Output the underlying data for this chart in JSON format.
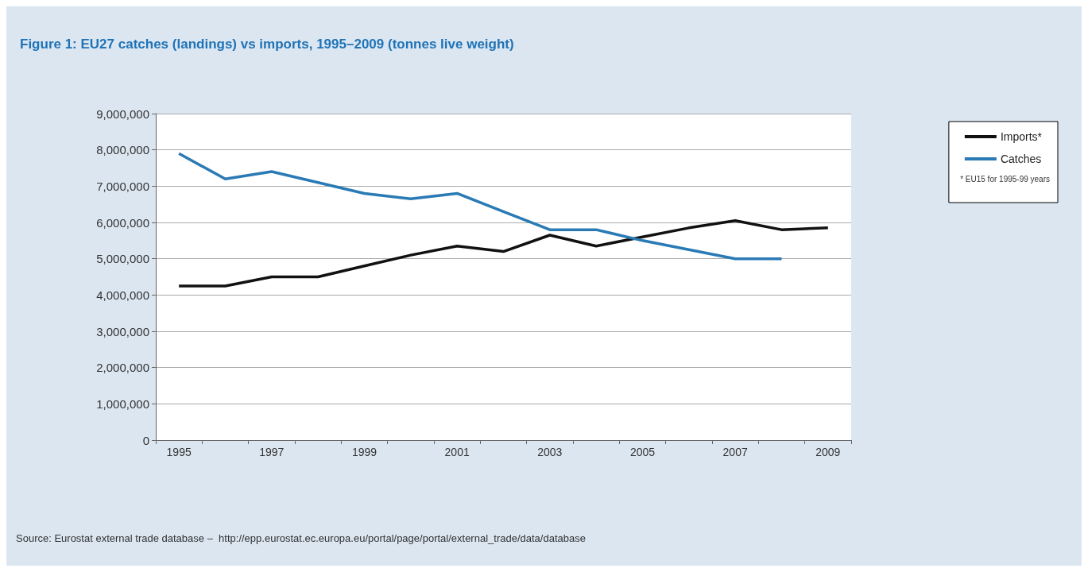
{
  "chart_data": {
    "type": "line",
    "title": "Figure 1: EU27 catches (landings) vs imports, 1995–2009 (tonnes live weight)",
    "categories": [
      "1995",
      null,
      "1997",
      null,
      "1999",
      null,
      "2001",
      null,
      "2003",
      null,
      "2005",
      null,
      "2007",
      null,
      "2009"
    ],
    "series": [
      {
        "name": "Imports*",
        "color": "#111111",
        "values": [
          4250000,
          4250000,
          4500000,
          4500000,
          4800000,
          5100000,
          5350000,
          5200000,
          5650000,
          5350000,
          5600000,
          5850000,
          6050000,
          5800000,
          5850000
        ]
      },
      {
        "name": "Catches",
        "color": "#2a7ab5",
        "values": [
          7900000,
          7200000,
          7400000,
          7100000,
          6800000,
          6650000,
          6800000,
          6300000,
          5800000,
          5800000,
          5500000,
          5250000,
          5000000,
          5000000,
          null
        ]
      }
    ],
    "ylim": [
      0,
      9000000
    ],
    "yticks": [
      0,
      {
        "value": 1000000,
        "label": "1,000,000"
      },
      {
        "value": 2000000,
        "label": "2,000,000"
      },
      {
        "value": 3000000,
        "label": "3,000,000"
      },
      {
        "value": 4000000,
        "label": "4,000,000"
      },
      {
        "value": 5000000,
        "label": "5,000,000"
      },
      {
        "value": 6000000,
        "label": "6,000,000"
      },
      {
        "value": 7000000,
        "label": "7,000,000"
      },
      {
        "value": 8000000,
        "label": "8,000,000"
      },
      {
        "value": 9000000,
        "label": "9,000,000"
      }
    ],
    "grid": "y",
    "legend": "right",
    "marker": "none",
    "line_style": "solid",
    "annotations": [
      "* EU15 for 1995-99 years",
      "Source: Eurostat external trade database –  http://epp.eurostat.ec.europa.eu/portal/page/portal/external_trade/data/database"
    ]
  }
}
